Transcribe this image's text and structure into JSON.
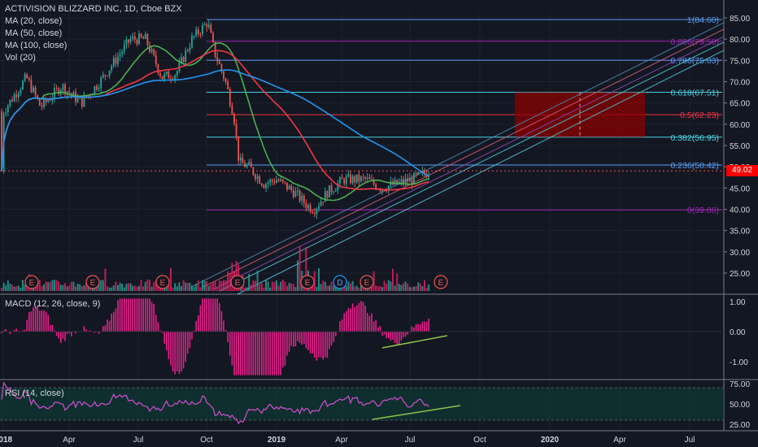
{
  "title": "ACTIVISION BLIZZARD INC, 1D, Cboe BZX",
  "indicators": {
    "ma20": "MA (20, close)",
    "ma50": "MA (50, close)",
    "ma100": "MA (100, close)",
    "vol": "Vol (20)",
    "macd": "MACD (12, 26, close, 9)",
    "rsi": "RSI (14, close)"
  },
  "last_price": "49.02",
  "colors": {
    "background": "#131722",
    "up": "#26a69a",
    "down": "#ef5350",
    "ma20": "#4caf50",
    "ma50": "#f23645",
    "ma100": "#2196f3",
    "macd_hist": "#e91e8c",
    "rsi_line": "#c54cc5",
    "rsi_band": "#0e3a34",
    "target_box": "#8b0000",
    "macd_divergence": "#8bc34a"
  },
  "chart_data": {
    "type": "candlestick",
    "x_ticks": [
      "2018",
      "Apr",
      "Jul",
      "Oct",
      "2019",
      "Apr",
      "Jul",
      "Oct",
      "2020",
      "Apr",
      "Jul"
    ],
    "price_axis": {
      "ticks": [
        25,
        30,
        35,
        40,
        45,
        50,
        55,
        60,
        65,
        70,
        75,
        80,
        85
      ],
      "tick_labels": [
        "25.00",
        "30.00",
        "35.00",
        "40.00",
        "45.00",
        "50.00",
        "55.00",
        "60.00",
        "65.00",
        "70.00",
        "75.00",
        "80.00",
        "85.00"
      ],
      "range": [
        21,
        87
      ]
    },
    "fibonacci": [
      {
        "label": "1(84.60)",
        "price": 84.6,
        "color": "#5b9cf6"
      },
      {
        "label": "0.886(79.50)",
        "price": 79.5,
        "color": "#9c27b0"
      },
      {
        "label": "0.786(75.03)",
        "price": 75.03,
        "color": "#5b9cf6"
      },
      {
        "label": "0.618(67.51)",
        "price": 67.51,
        "color": "#4dd0e1"
      },
      {
        "label": "0.5(62.23)",
        "price": 62.23,
        "color": "#f23645"
      },
      {
        "label": "0.382(56.95)",
        "price": 56.95,
        "color": "#4dd0e1"
      },
      {
        "label": "0.236(50.42)",
        "price": 50.42,
        "color": "#5b9cf6"
      },
      {
        "label": "0(39.86)",
        "price": 39.86,
        "color": "#9c27b0"
      }
    ],
    "target_zone": {
      "from_date": "2019-10-15",
      "to_date": "2020-05-01",
      "low": 57.0,
      "high": 67.5
    },
    "earnings_markers": [
      "E",
      "E",
      "E",
      "E",
      "E",
      "D",
      "E",
      "E"
    ],
    "macd_axis": {
      "ticks": [
        -1,
        0,
        1
      ],
      "tick_labels": [
        "-1.00",
        "0.00",
        "1.00"
      ],
      "range": [
        -1.5,
        1.2
      ]
    },
    "rsi_axis": {
      "ticks": [
        25,
        50,
        75
      ],
      "tick_labels": [
        "25.00",
        "50.00",
        "75.00"
      ],
      "range": [
        20,
        78
      ],
      "band": [
        30,
        70
      ]
    },
    "price_path": [
      {
        "date": "2018-01-01",
        "close": 63
      },
      {
        "date": "2018-02-01",
        "close": 71
      },
      {
        "date": "2018-02-20",
        "close": 64
      },
      {
        "date": "2018-03-20",
        "close": 69
      },
      {
        "date": "2018-04-15",
        "close": 65
      },
      {
        "date": "2018-05-10",
        "close": 70
      },
      {
        "date": "2018-06-20",
        "close": 80
      },
      {
        "date": "2018-07-10",
        "close": 80
      },
      {
        "date": "2018-08-01",
        "close": 71
      },
      {
        "date": "2018-08-20",
        "close": 72
      },
      {
        "date": "2018-09-10",
        "close": 80
      },
      {
        "date": "2018-10-01",
        "close": 84
      },
      {
        "date": "2018-10-10",
        "close": 77
      },
      {
        "date": "2018-10-25",
        "close": 70
      },
      {
        "date": "2018-11-05",
        "close": 62
      },
      {
        "date": "2018-11-12",
        "close": 51
      },
      {
        "date": "2018-11-25",
        "close": 50
      },
      {
        "date": "2018-12-15",
        "close": 46
      },
      {
        "date": "2019-01-01",
        "close": 47
      },
      {
        "date": "2019-01-25",
        "close": 44
      },
      {
        "date": "2019-02-10",
        "close": 41
      },
      {
        "date": "2019-02-20",
        "close": 40
      },
      {
        "date": "2019-03-10",
        "close": 44
      },
      {
        "date": "2019-04-01",
        "close": 47
      },
      {
        "date": "2019-05-01",
        "close": 47
      },
      {
        "date": "2019-05-20",
        "close": 45
      },
      {
        "date": "2019-06-10",
        "close": 46
      },
      {
        "date": "2019-07-01",
        "close": 47
      },
      {
        "date": "2019-07-25",
        "close": 49
      }
    ]
  }
}
